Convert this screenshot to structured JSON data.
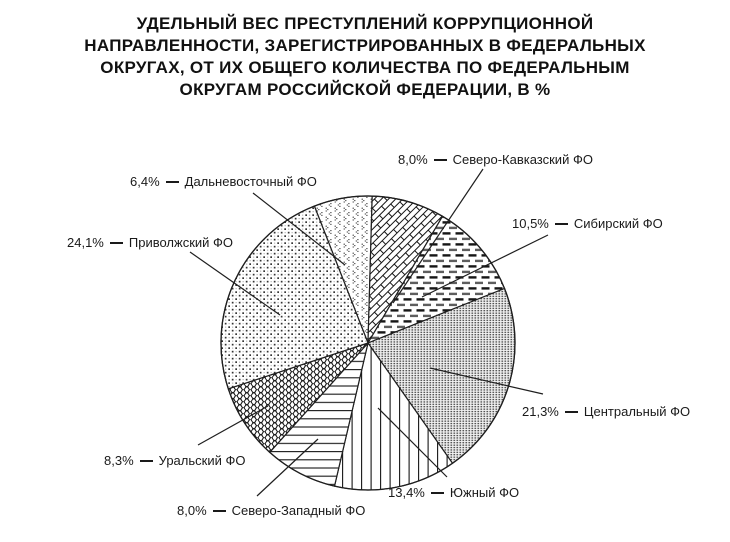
{
  "title": {
    "lines": [
      "УДЕЛЬНЫЙ ВЕС ПРЕСТУПЛЕНИЙ КОРРУПЦИОННОЙ",
      "НАПРАВЛЕННОСТИ, ЗАРЕГИСТРИРОВАННЫХ В ФЕДЕРАЛЬНЫХ",
      "ОКРУГАХ, ОТ ИХ ОБЩЕГО КОЛИЧЕСТВА ПО ФЕДЕРАЛЬНЫМ",
      "ОКРУГАМ РОССИЙСКОЙ ФЕДЕРАЦИИ, В %"
    ]
  },
  "chart_data": {
    "type": "pie",
    "title": "УДЕЛЬНЫЙ ВЕС ПРЕСТУПЛЕНИЙ КОРРУПЦИОННОЙ НАПРАВЛЕННОСТИ, ЗАРЕГИСТРИРОВАННЫХ В ФЕДЕРАЛЬНЫХ ОКРУГАХ, ОТ ИХ ОБЩЕГО КОЛИЧЕСТВА ПО ФЕДЕРАЛЬНЫМ ОКРУГАМ РОССИЙСКОЙ ФЕДЕРАЦИИ, В %",
    "unit": "%",
    "direction": "clockwise",
    "start_angle_clockwise_from_12": -21.4,
    "legend": "none",
    "slices": [
      {
        "label": "Дальневосточный ФО",
        "value": 6.4,
        "value_label": "6,4%",
        "pattern": "chevrons"
      },
      {
        "label": "Северо-Кавказский ФО",
        "value": 8.0,
        "value_label": "8,0%",
        "pattern": "diagonal-bricks"
      },
      {
        "label": "Сибирский ФО",
        "value": 10.5,
        "value_label": "10,5%",
        "pattern": "horizontal-dashes"
      },
      {
        "label": "Центральный ФО",
        "value": 21.3,
        "value_label": "21,3%",
        "pattern": "fine-dot-grid"
      },
      {
        "label": "Южный ФО",
        "value": 13.4,
        "value_label": "13,4%",
        "pattern": "vertical-lines"
      },
      {
        "label": "Северо-Западный ФО",
        "value": 8.0,
        "value_label": "8,0%",
        "pattern": "horizontal-lines"
      },
      {
        "label": "Уральский ФО",
        "value": 8.3,
        "value_label": "8,3%",
        "pattern": "shingle-scales"
      },
      {
        "label": "Приволжский ФО",
        "value": 24.1,
        "value_label": "24,1%",
        "pattern": "sparse-dots"
      }
    ],
    "colors": {
      "stroke": "#1f1f1f",
      "background": "#ffffff",
      "pattern_ink": "#1a1a1a",
      "fine_dot_bg": "#f3f3f3"
    }
  }
}
